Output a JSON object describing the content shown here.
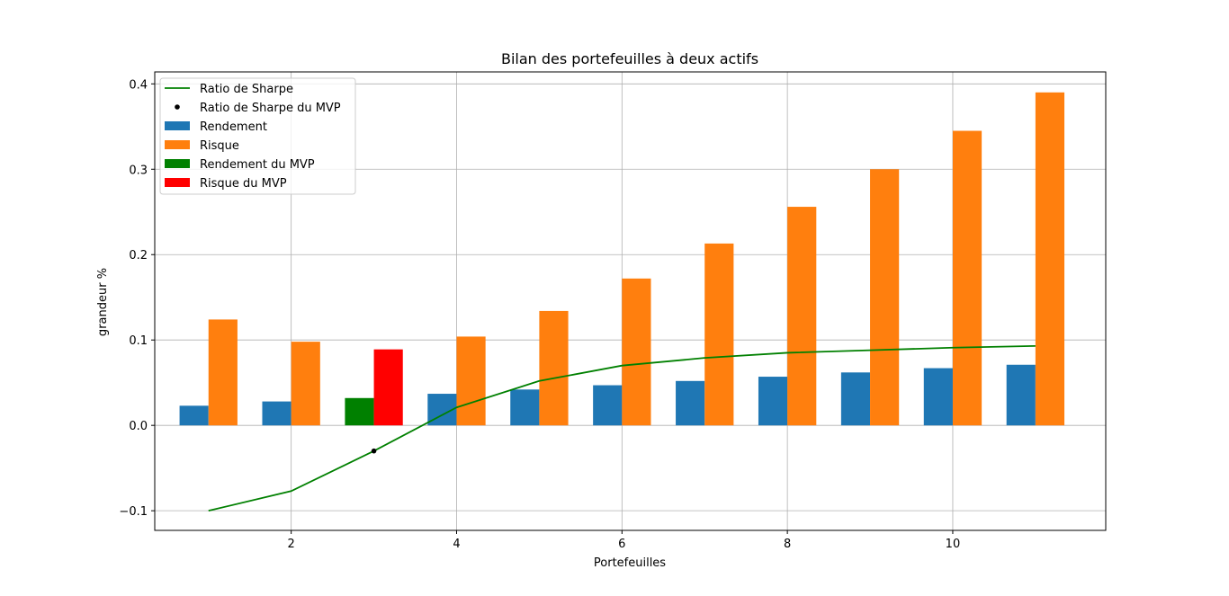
{
  "chart_data": {
    "type": "bar",
    "title": "Bilan des portefeuilles à deux actifs",
    "xlabel": "Portefeuilles",
    "ylabel": "grandeur %",
    "x": [
      1,
      2,
      3,
      4,
      5,
      6,
      7,
      8,
      9,
      10,
      11
    ],
    "xlim": [
      0.35,
      11.85
    ],
    "ylim": [
      -0.123,
      0.414
    ],
    "x_ticks": [
      2,
      4,
      6,
      8,
      10
    ],
    "y_ticks": [
      -0.1,
      0.0,
      0.1,
      0.2,
      0.3,
      0.4
    ],
    "x_tick_labels": [
      "2",
      "4",
      "6",
      "8",
      "10"
    ],
    "y_tick_labels": [
      "−0.1",
      "0.0",
      "0.1",
      "0.2",
      "0.3",
      "0.4"
    ],
    "grid": true,
    "legend_position": "top-left",
    "mvp_index": 3,
    "series": [
      {
        "name": "Ratio de Sharpe",
        "kind": "line",
        "color": "#008000",
        "values": [
          -0.1,
          -0.077,
          -0.03,
          0.021,
          0.052,
          0.07,
          0.079,
          0.085,
          0.088,
          0.091,
          0.093
        ]
      },
      {
        "name": "Ratio de Sharpe du MVP",
        "kind": "point",
        "color": "#000000",
        "x": 3,
        "value": -0.03
      },
      {
        "name": "Rendement",
        "kind": "bar",
        "offset": "left",
        "color": "#1f77b4",
        "values": [
          0.023,
          0.028,
          0.032,
          0.037,
          0.042,
          0.047,
          0.052,
          0.057,
          0.062,
          0.067,
          0.071
        ]
      },
      {
        "name": "Risque",
        "kind": "bar",
        "offset": "right",
        "color": "#ff7f0e",
        "values": [
          0.124,
          0.098,
          0.089,
          0.104,
          0.134,
          0.172,
          0.213,
          0.256,
          0.3,
          0.345,
          0.39
        ]
      },
      {
        "name": "Rendement du MVP",
        "kind": "bar",
        "offset": "left",
        "color": "#008000",
        "x": 3,
        "value": 0.032
      },
      {
        "name": "Risque du MVP",
        "kind": "bar",
        "offset": "right",
        "color": "#ff0000",
        "x": 3,
        "value": 0.089
      }
    ]
  }
}
